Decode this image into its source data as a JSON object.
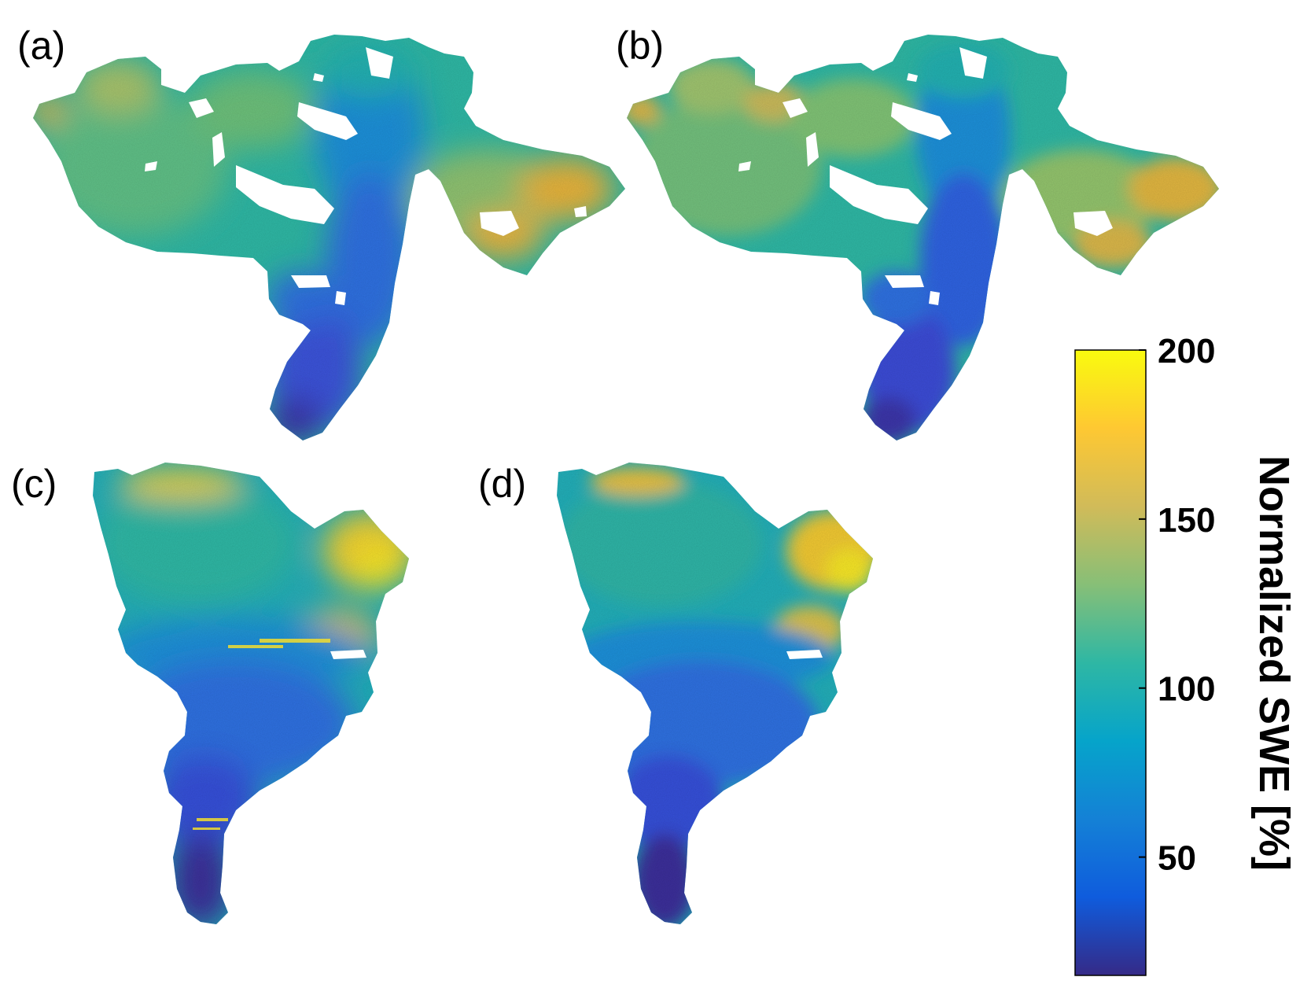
{
  "panels": [
    {
      "label": "(a)"
    },
    {
      "label": "(b)"
    },
    {
      "label": "(c)"
    },
    {
      "label": "(d)"
    }
  ],
  "colorbar": {
    "title": "Normalized SWE [%]",
    "min": 15,
    "max": 200,
    "ticks": [
      {
        "value": 200,
        "label": "200"
      },
      {
        "value": 150,
        "label": "150"
      },
      {
        "value": 100,
        "label": "100"
      },
      {
        "value": 50,
        "label": "50"
      }
    ],
    "colormap": "parula",
    "stops": [
      "#352a87",
      "#0f5cdd",
      "#1481d6",
      "#06a4ca",
      "#2eb7a4",
      "#87bf77",
      "#d1bb59",
      "#fec832",
      "#f9fb0e"
    ]
  },
  "colors": {
    "low": "#3b36a8",
    "blue": "#2f6fe0",
    "mid_blue": "#1e8fd8",
    "teal": "#22b0b0",
    "green": "#6cc07a",
    "gold": "#e6b23a",
    "yellow": "#f4e22a"
  }
}
